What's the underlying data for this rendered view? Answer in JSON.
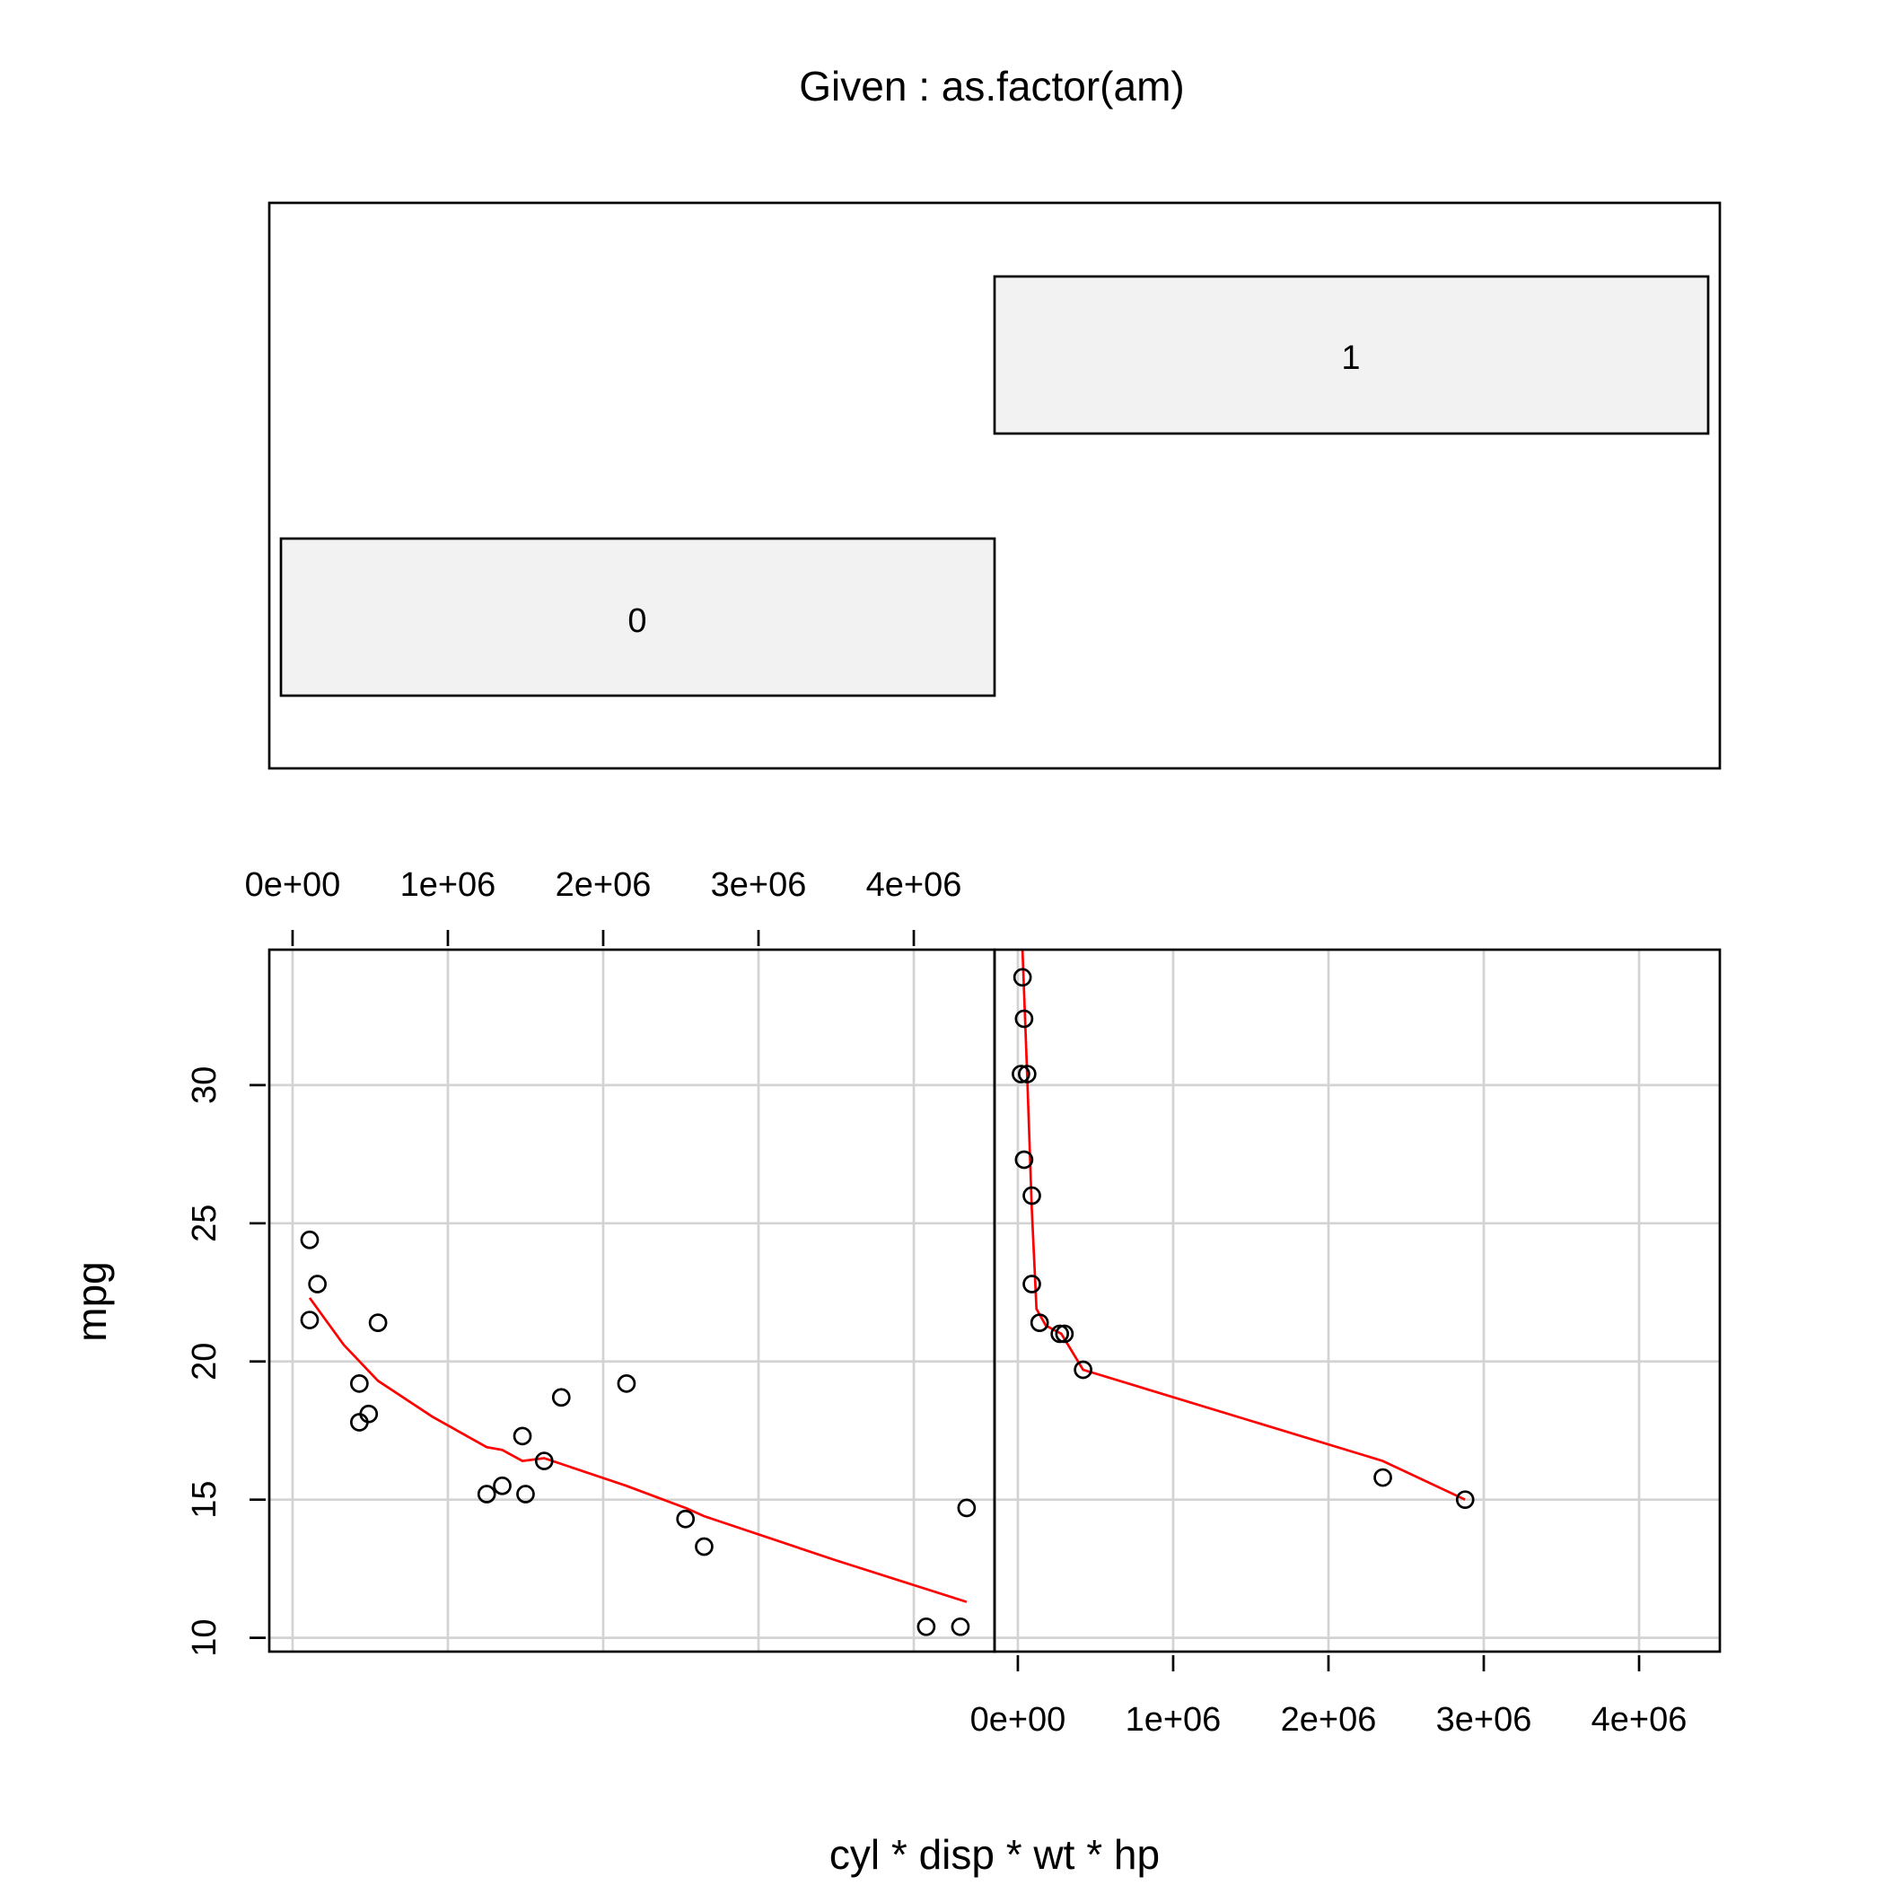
{
  "given_title": "Given : as.factor(am)",
  "given_levels": [
    "0",
    "1"
  ],
  "colors": {
    "points": "#000000",
    "smooth": "#ff0000",
    "grid": "#d3d3d3",
    "bar_fill": "#f2f2f2"
  },
  "chart_data": [
    {
      "type": "scatter",
      "panel": "am = 0",
      "xlabel": "cyl * disp * wt * hp",
      "ylabel": "mpg",
      "xlim": [
        -150000,
        4520000
      ],
      "ylim": [
        9.5,
        34.9
      ],
      "x_ticks": [
        0,
        1000000,
        2000000,
        3000000,
        4000000
      ],
      "x_tick_labels": [
        "0e+00",
        "1e+06",
        "2e+06",
        "3e+06",
        "4e+06"
      ],
      "y_ticks": [
        10,
        15,
        20,
        25,
        30
      ],
      "y_tick_labels": [
        "10",
        "15",
        "20",
        "25",
        "30"
      ],
      "grid": true,
      "points": [
        {
          "x": 110000,
          "y": 24.4
        },
        {
          "x": 160000,
          "y": 22.8
        },
        {
          "x": 110000,
          "y": 21.5
        },
        {
          "x": 550000,
          "y": 21.4
        },
        {
          "x": 430000,
          "y": 19.2
        },
        {
          "x": 2150000,
          "y": 19.2
        },
        {
          "x": 490000,
          "y": 18.1
        },
        {
          "x": 430000,
          "y": 17.8
        },
        {
          "x": 1730000,
          "y": 18.7
        },
        {
          "x": 1480000,
          "y": 17.3
        },
        {
          "x": 1620000,
          "y": 16.4
        },
        {
          "x": 1350000,
          "y": 15.5
        },
        {
          "x": 1250000,
          "y": 15.2
        },
        {
          "x": 1500000,
          "y": 15.2
        },
        {
          "x": 2530000,
          "y": 14.3
        },
        {
          "x": 4340000,
          "y": 14.7
        },
        {
          "x": 2650000,
          "y": 13.3
        },
        {
          "x": 4080000,
          "y": 10.4
        },
        {
          "x": 4300000,
          "y": 10.4
        }
      ],
      "smooth": [
        {
          "x": 110000,
          "y": 22.3
        },
        {
          "x": 330000,
          "y": 20.6
        },
        {
          "x": 550000,
          "y": 19.3
        },
        {
          "x": 900000,
          "y": 18.0
        },
        {
          "x": 1250000,
          "y": 16.9
        },
        {
          "x": 1350000,
          "y": 16.8
        },
        {
          "x": 1480000,
          "y": 16.4
        },
        {
          "x": 1620000,
          "y": 16.5
        },
        {
          "x": 2150000,
          "y": 15.5
        },
        {
          "x": 2530000,
          "y": 14.7
        },
        {
          "x": 2650000,
          "y": 14.4
        },
        {
          "x": 3500000,
          "y": 12.8
        },
        {
          "x": 4340000,
          "y": 11.3
        }
      ]
    },
    {
      "type": "scatter",
      "panel": "am = 1",
      "xlabel": "cyl * disp * wt * hp",
      "ylabel": "mpg",
      "xlim": [
        -150000,
        4520000
      ],
      "ylim": [
        9.5,
        34.9
      ],
      "x_ticks": [
        0,
        1000000,
        2000000,
        3000000,
        4000000
      ],
      "x_tick_labels": [
        "0e+00",
        "1e+06",
        "2e+06",
        "3e+06",
        "4e+06"
      ],
      "y_ticks": [
        10,
        15,
        20,
        25,
        30
      ],
      "y_tick_labels": [
        "10",
        "15",
        "20",
        "25",
        "30"
      ],
      "grid": true,
      "points": [
        {
          "x": 30000,
          "y": 33.9
        },
        {
          "x": 40000,
          "y": 32.4
        },
        {
          "x": 20000,
          "y": 30.4
        },
        {
          "x": 60000,
          "y": 30.4
        },
        {
          "x": 40000,
          "y": 27.3
        },
        {
          "x": 90000,
          "y": 26.0
        },
        {
          "x": 90000,
          "y": 22.8
        },
        {
          "x": 140000,
          "y": 21.4
        },
        {
          "x": 270000,
          "y": 21.0
        },
        {
          "x": 300000,
          "y": 21.0
        },
        {
          "x": 420000,
          "y": 19.7
        },
        {
          "x": 2350000,
          "y": 15.8
        },
        {
          "x": 2880000,
          "y": 15.0
        }
      ],
      "smooth": [
        {
          "x": 30000,
          "y": 34.9
        },
        {
          "x": 60000,
          "y": 30.4
        },
        {
          "x": 90000,
          "y": 25.5
        },
        {
          "x": 120000,
          "y": 21.9
        },
        {
          "x": 180000,
          "y": 21.3
        },
        {
          "x": 280000,
          "y": 21.0
        },
        {
          "x": 420000,
          "y": 19.7
        },
        {
          "x": 2350000,
          "y": 16.4
        },
        {
          "x": 2880000,
          "y": 15.0
        }
      ]
    }
  ]
}
